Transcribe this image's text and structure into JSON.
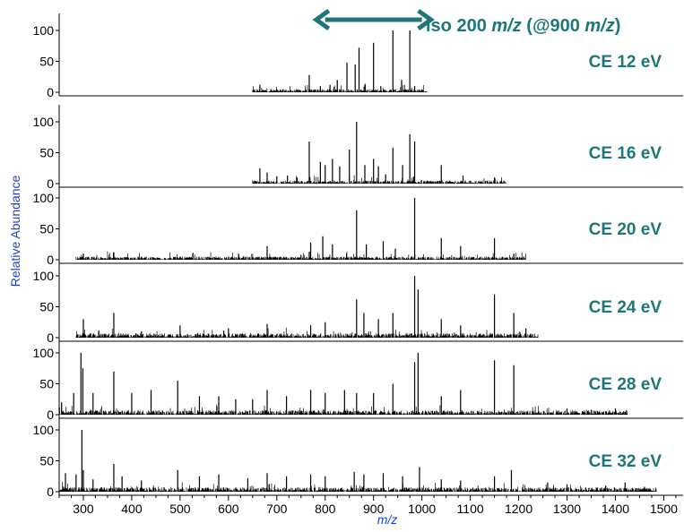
{
  "chart_data": {
    "type": "line",
    "xlabel": "m/z",
    "ylabel": "Relative Abundance",
    "xlim": [
      250,
      1540
    ],
    "ylim": [
      0,
      100
    ],
    "x_ticks": [
      "300",
      "400",
      "500",
      "600",
      "700",
      "800",
      "900",
      "1000",
      "1100",
      "1200",
      "1300",
      "1400",
      "1500"
    ],
    "y_ticks": [
      "0",
      "50",
      "100"
    ],
    "annotation": {
      "prefix": "iso 200 ",
      "unit1": "m/z",
      "middle": " (@900 ",
      "unit2": "m/z",
      "suffix": ")",
      "range": [
        800,
        1000
      ]
    },
    "panels": [
      {
        "label": "CE 12 eV",
        "peaks": [
          [
            665,
            12
          ],
          [
            688,
            5
          ],
          [
            700,
            5
          ],
          [
            742,
            4
          ],
          [
            767,
            28
          ],
          [
            790,
            10
          ],
          [
            810,
            12
          ],
          [
            825,
            20
          ],
          [
            845,
            48
          ],
          [
            862,
            45
          ],
          [
            870,
            72
          ],
          [
            882,
            12
          ],
          [
            900,
            80
          ],
          [
            915,
            10
          ],
          [
            940,
            100
          ],
          [
            958,
            20
          ],
          [
            975,
            100
          ],
          [
            985,
            10
          ]
        ]
      },
      {
        "label": "CE 16 eV",
        "peaks": [
          [
            665,
            25
          ],
          [
            680,
            18
          ],
          [
            700,
            12
          ],
          [
            722,
            13
          ],
          [
            742,
            10
          ],
          [
            767,
            68
          ],
          [
            790,
            35
          ],
          [
            800,
            30
          ],
          [
            815,
            40
          ],
          [
            830,
            28
          ],
          [
            850,
            55
          ],
          [
            865,
            100
          ],
          [
            882,
            30
          ],
          [
            900,
            40
          ],
          [
            910,
            28
          ],
          [
            925,
            15
          ],
          [
            940,
            58
          ],
          [
            960,
            30
          ],
          [
            975,
            80
          ],
          [
            985,
            68
          ],
          [
            1040,
            30
          ],
          [
            1085,
            13
          ],
          [
            1150,
            10
          ]
        ]
      },
      {
        "label": "CE 20 eV",
        "peaks": [
          [
            300,
            10
          ],
          [
            363,
            12
          ],
          [
            420,
            5
          ],
          [
            500,
            5
          ],
          [
            600,
            5
          ],
          [
            680,
            22
          ],
          [
            750,
            8
          ],
          [
            770,
            28
          ],
          [
            795,
            38
          ],
          [
            815,
            25
          ],
          [
            865,
            80
          ],
          [
            885,
            25
          ],
          [
            920,
            30
          ],
          [
            945,
            18
          ],
          [
            985,
            100
          ],
          [
            1040,
            35
          ],
          [
            1080,
            22
          ],
          [
            1150,
            35
          ],
          [
            1190,
            10
          ]
        ]
      },
      {
        "label": "CE 24 eV",
        "peaks": [
          [
            300,
            30
          ],
          [
            363,
            40
          ],
          [
            420,
            10
          ],
          [
            500,
            20
          ],
          [
            600,
            15
          ],
          [
            680,
            22
          ],
          [
            770,
            20
          ],
          [
            800,
            25
          ],
          [
            865,
            62
          ],
          [
            880,
            40
          ],
          [
            910,
            30
          ],
          [
            940,
            40
          ],
          [
            985,
            100
          ],
          [
            992,
            78
          ],
          [
            1040,
            30
          ],
          [
            1080,
            20
          ],
          [
            1150,
            70
          ],
          [
            1190,
            40
          ],
          [
            1215,
            15
          ]
        ]
      },
      {
        "label": "CE 28 eV",
        "peaks": [
          [
            255,
            20
          ],
          [
            280,
            35
          ],
          [
            295,
            100
          ],
          [
            299,
            75
          ],
          [
            320,
            35
          ],
          [
            363,
            70
          ],
          [
            400,
            35
          ],
          [
            440,
            40
          ],
          [
            495,
            55
          ],
          [
            540,
            30
          ],
          [
            580,
            30
          ],
          [
            615,
            25
          ],
          [
            650,
            25
          ],
          [
            680,
            40
          ],
          [
            720,
            30
          ],
          [
            770,
            40
          ],
          [
            800,
            35
          ],
          [
            840,
            40
          ],
          [
            865,
            35
          ],
          [
            900,
            35
          ],
          [
            940,
            50
          ],
          [
            985,
            85
          ],
          [
            992,
            100
          ],
          [
            1040,
            30
          ],
          [
            1080,
            40
          ],
          [
            1150,
            88
          ],
          [
            1190,
            80
          ],
          [
            1300,
            10
          ],
          [
            1350,
            8
          ],
          [
            1400,
            10
          ]
        ]
      },
      {
        "label": "CE 32 eV",
        "peaks": [
          [
            263,
            30
          ],
          [
            285,
            28
          ],
          [
            297,
            100
          ],
          [
            300,
            35
          ],
          [
            320,
            20
          ],
          [
            363,
            45
          ],
          [
            380,
            25
          ],
          [
            420,
            18
          ],
          [
            495,
            35
          ],
          [
            540,
            25
          ],
          [
            580,
            28
          ],
          [
            640,
            22
          ],
          [
            680,
            30
          ],
          [
            720,
            25
          ],
          [
            770,
            28
          ],
          [
            800,
            25
          ],
          [
            860,
            32
          ],
          [
            880,
            28
          ],
          [
            920,
            30
          ],
          [
            960,
            25
          ],
          [
            995,
            40
          ],
          [
            1040,
            20
          ],
          [
            1080,
            18
          ],
          [
            1150,
            25
          ],
          [
            1185,
            35
          ],
          [
            1260,
            15
          ],
          [
            1300,
            12
          ],
          [
            1380,
            10
          ],
          [
            1420,
            15
          ],
          [
            1460,
            8
          ]
        ]
      }
    ]
  }
}
